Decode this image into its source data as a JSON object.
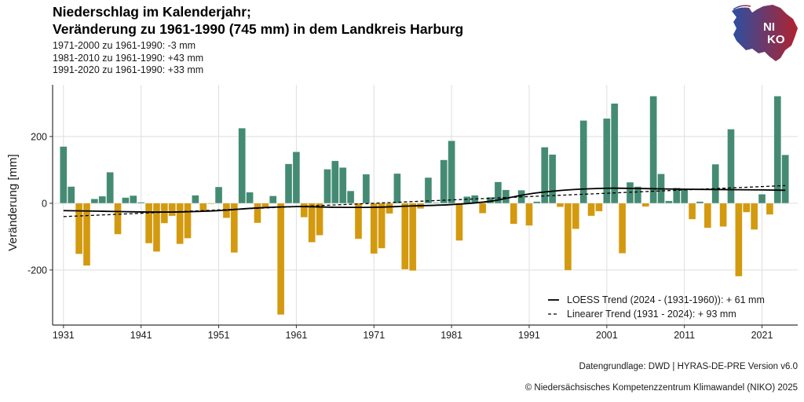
{
  "title_lines": [
    "Niederschlag im Kalenderjahr;",
    "Veränderung zu 1961-1990 (745 mm) in dem Landkreis Harburg"
  ],
  "subtitle_lines": [
    "1971-2000 zu 1961-1990: -3 mm",
    "1981-2010 zu 1961-1990: +43 mm",
    "1991-2020 zu 1961-1990: +33 mm"
  ],
  "logo": {
    "text_line1": "NI",
    "text_line2": "KO",
    "colors": [
      "#2b4fa3",
      "#b0232e"
    ]
  },
  "captions": [
    "Datengrundlage: DWD | HYRAS-DE-PRE Version v6.0",
    "© Niedersächsisches Kompetenzzentrum Klimawandel (NIKO) 2025"
  ],
  "chart_data": {
    "type": "bar",
    "title": "Niederschlag im Kalenderjahr; Veränderung zu 1961-1990 (745 mm) in dem Landkreis Harburg",
    "xlabel": "",
    "ylabel": "Veränderung [mm]",
    "ylim": [
      -365,
      355
    ],
    "xlim": [
      1929.6,
      2025.6
    ],
    "yticks": [
      -200,
      0,
      200
    ],
    "ytick_labels": [
      "-200",
      "0",
      "200"
    ],
    "xticks": [
      1931,
      1941,
      1951,
      1961,
      1971,
      1981,
      1991,
      2001,
      2011,
      2021
    ],
    "xtick_labels": [
      "1931",
      "1941",
      "1951",
      "1961",
      "1971",
      "1981",
      "1991",
      "2001",
      "2011",
      "2021"
    ],
    "grid": true,
    "colors": {
      "positive": "#458b73",
      "negative": "#d39a0f"
    },
    "years": [
      1931,
      1932,
      1933,
      1934,
      1935,
      1936,
      1937,
      1938,
      1939,
      1940,
      1941,
      1942,
      1943,
      1944,
      1945,
      1946,
      1947,
      1948,
      1949,
      1950,
      1951,
      1952,
      1953,
      1954,
      1955,
      1956,
      1957,
      1958,
      1959,
      1960,
      1961,
      1962,
      1963,
      1964,
      1965,
      1966,
      1967,
      1968,
      1969,
      1970,
      1971,
      1972,
      1973,
      1974,
      1975,
      1976,
      1977,
      1978,
      1979,
      1980,
      1981,
      1982,
      1983,
      1984,
      1985,
      1986,
      1987,
      1988,
      1989,
      1990,
      1991,
      1992,
      1993,
      1994,
      1995,
      1996,
      1997,
      1998,
      1999,
      2000,
      2001,
      2002,
      2003,
      2004,
      2005,
      2006,
      2007,
      2008,
      2009,
      2010,
      2011,
      2012,
      2013,
      2014,
      2015,
      2016,
      2017,
      2018,
      2019,
      2020,
      2021,
      2022,
      2023,
      2024
    ],
    "values": [
      170,
      50,
      -152,
      -187,
      13,
      21,
      93,
      -93,
      17,
      23,
      3,
      -120,
      -145,
      -60,
      -38,
      -122,
      -105,
      24,
      -22,
      -2,
      49,
      -44,
      -148,
      225,
      33,
      -59,
      -13,
      22,
      -334,
      118,
      154,
      -42,
      -117,
      -96,
      102,
      127,
      107,
      37,
      -107,
      87,
      -151,
      -135,
      -31,
      89,
      -198,
      -202,
      -16,
      77,
      2,
      130,
      187,
      -112,
      20,
      24,
      -30,
      18,
      64,
      40,
      -62,
      39,
      -67,
      5,
      168,
      146,
      -11,
      -201,
      -77,
      248,
      -38,
      -24,
      254,
      299,
      -150,
      63,
      50,
      -10,
      321,
      88,
      7,
      46,
      41,
      -48,
      5,
      -74,
      117,
      -70,
      222,
      -219,
      -27,
      -79,
      27,
      -34,
      321,
      145
    ],
    "loess": {
      "name": "LOESS Trend (2024 - (1931-1960)): + 61 mm",
      "x": [
        1931,
        1936,
        1941,
        1946,
        1951,
        1956,
        1961,
        1966,
        1971,
        1976,
        1981,
        1986,
        1991,
        1996,
        2001,
        2006,
        2011,
        2016,
        2021,
        2024
      ],
      "y": [
        -22,
        -24,
        -26,
        -26,
        -22,
        -14,
        -10,
        -12,
        -12,
        -8,
        -4,
        6,
        28,
        40,
        45,
        44,
        42,
        41,
        40,
        39
      ]
    },
    "linear": {
      "name": "Linearer Trend (1931 - 2024): + 93 mm",
      "x": [
        1931,
        2024
      ],
      "y": [
        -40,
        53
      ]
    },
    "legend_position": "bottom-right"
  }
}
